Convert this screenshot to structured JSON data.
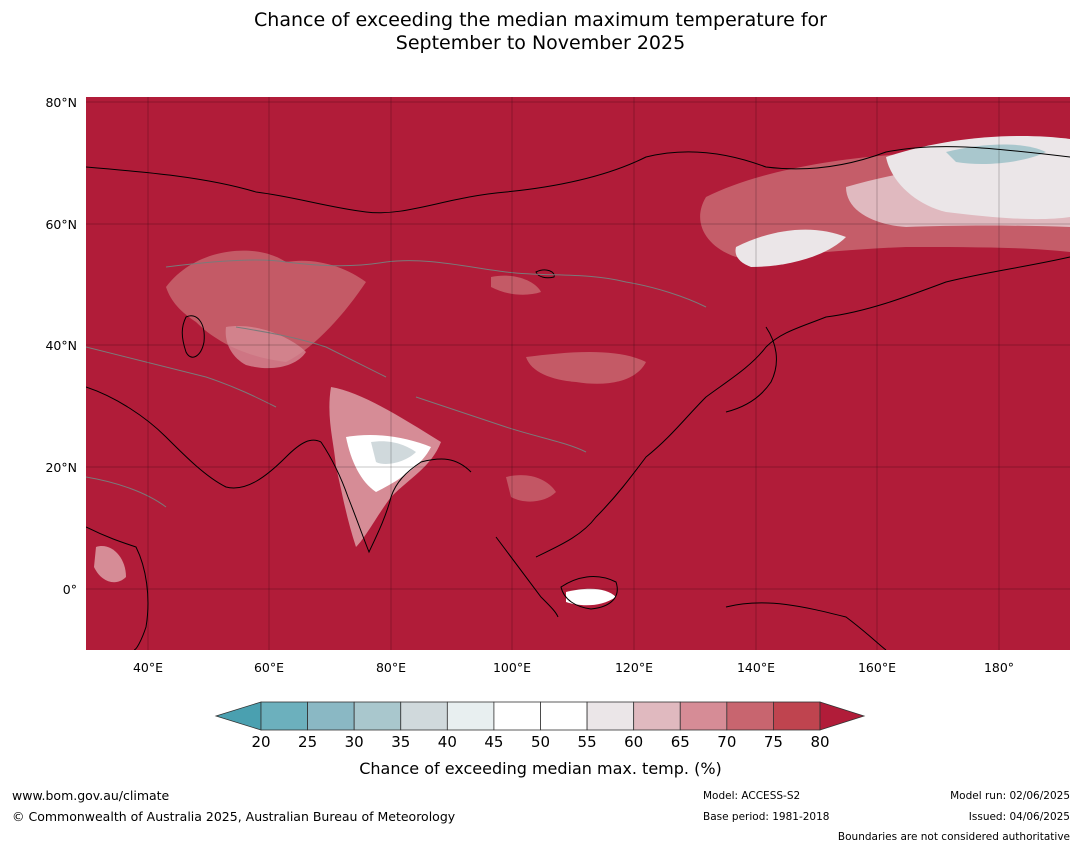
{
  "title": {
    "line1": "Chance of exceeding the median maximum temperature for",
    "line2": "September to November 2025"
  },
  "map": {
    "background_color": "#b11c39",
    "lat_labels": [
      "80°N",
      "60°N",
      "40°N",
      "20°N",
      "0°"
    ],
    "lon_labels": [
      "40°E",
      "60°E",
      "80°E",
      "100°E",
      "120°E",
      "140°E",
      "160°E",
      "180°"
    ]
  },
  "colorbar": {
    "ticks": [
      "20",
      "25",
      "30",
      "35",
      "40",
      "45",
      "50",
      "55",
      "60",
      "65",
      "70",
      "75",
      "80"
    ],
    "colors": [
      "#4aa0b0",
      "#6cb0bd",
      "#8ab8c4",
      "#a9c7cd",
      "#d0d9dc",
      "#e8eff0",
      "#ffffff",
      "#ffffff",
      "#ebe6e8",
      "#e0b9bf",
      "#d68c96",
      "#c8656f",
      "#bf444f",
      "#b11c39"
    ],
    "label": "Chance of exceeding median max. temp. (%)"
  },
  "footer": {
    "website": "www.bom.gov.au/climate",
    "copyright": "© Commonwealth of Australia 2025, Australian Bureau of Meteorology",
    "model": "Model: ACCESS-S2",
    "base_period": "Base period: 1981-2018",
    "model_run": "Model run: 02/06/2025",
    "issued": "Issued: 04/06/2025",
    "boundaries": "Boundaries are not considered authoritative"
  }
}
